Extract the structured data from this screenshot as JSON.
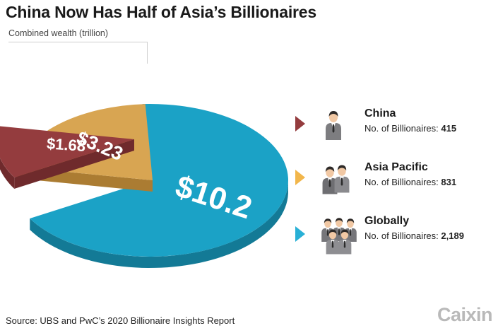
{
  "title": "China Now Has Half of Asia’s Billionaires",
  "subtitle": "Combined wealth (trillion)",
  "chart_data": {
    "type": "pie",
    "title": "China Now Has Half of Asia’s Billionaires",
    "subtitle": "Combined wealth (trillion)",
    "slices": [
      {
        "label": "China",
        "value": 1.68,
        "display": "$1.68",
        "color": "#943c3e",
        "side": "#6f2a2c"
      },
      {
        "label": "Asia Pacific",
        "value": 3.23,
        "display": "$3.23",
        "color": "#d8a552",
        "side": "#ab7c32"
      },
      {
        "label": "Globally",
        "value": 10.2,
        "display": "$10.2",
        "color": "#1ba2c6",
        "side": "#137a96"
      }
    ],
    "legend_placement": "right"
  },
  "legend": [
    {
      "name": "China",
      "count_label": "No. of Billionaires:",
      "count": "415",
      "color": "#943c3e",
      "people": 1
    },
    {
      "name": "Asia Pacific",
      "count_label": "No. of Billionaires:",
      "count": "831",
      "color": "#f2b64b",
      "people": 2
    },
    {
      "name": "Globally",
      "count_label": "No. of Billionaires:",
      "count": "2,189",
      "color": "#29b0d6",
      "people": 5
    }
  ],
  "source": "Source: UBS and PwC’s 2020 Billionaire Insights Report",
  "brand": "Caixin"
}
